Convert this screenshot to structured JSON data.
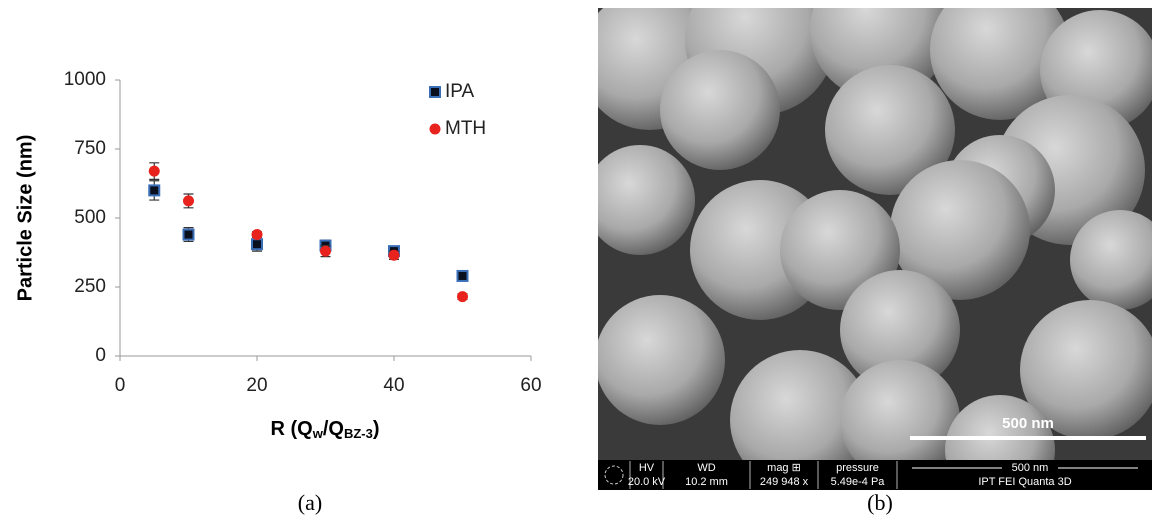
{
  "chart_data": {
    "type": "scatter",
    "ylabel": "Particle Size (nm)",
    "xlabel_parts": [
      "R (Q",
      "w",
      "/Q",
      "BZ-3",
      ")"
    ],
    "x": [
      5,
      10,
      20,
      30,
      40,
      50
    ],
    "series": [
      {
        "name": "IPA",
        "color": "#0a0f1e",
        "edge": "#3a6fb8",
        "marker": "square",
        "values": [
          600,
          440,
          405,
          400,
          380,
          290
        ],
        "errors": [
          35,
          25,
          25,
          20,
          15,
          12
        ]
      },
      {
        "name": "MTH",
        "color": "#e8231d",
        "edge": "#e8231d",
        "marker": "circle",
        "values": [
          670,
          562,
          440,
          380,
          365,
          215
        ],
        "errors": [
          30,
          25,
          10,
          20,
          15,
          10
        ]
      }
    ],
    "xlim": [
      0,
      60
    ],
    "xticks": [
      0,
      20,
      40,
      60
    ],
    "ylim": [
      0,
      1000
    ],
    "yticks": [
      0,
      250,
      500,
      750,
      1000
    ],
    "grid": false,
    "legend": "upper right",
    "caption": "(a)"
  },
  "image": {
    "caption": "(b)",
    "scale_bar": "500 nm",
    "info_headers": [
      "HV",
      "WD",
      "mag ⊞",
      "pressure"
    ],
    "info_values": [
      "20.0 kV",
      "10.2 mm",
      "249 948 x",
      "5.49e-4 Pa"
    ],
    "info_scale": "500 nm",
    "info_instrument": "IPT FEI Quanta 3D"
  }
}
